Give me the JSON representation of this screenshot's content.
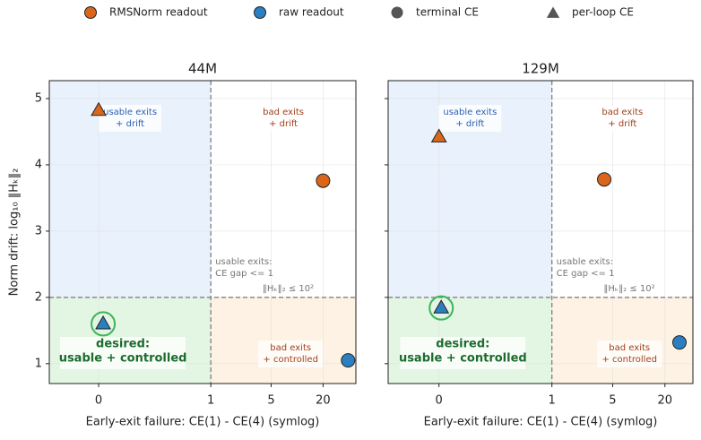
{
  "legend": {
    "series": [
      {
        "name": "RMSNorm readout",
        "color": "#d9661a"
      },
      {
        "name": "raw readout",
        "color": "#2b7fc1"
      }
    ],
    "markers": [
      {
        "name": "terminal CE",
        "shape": "circle"
      },
      {
        "name": "per-loop CE",
        "shape": "triangle"
      }
    ],
    "marker_color": "#555555"
  },
  "chart_data": [
    {
      "type": "scatter",
      "title": "44M",
      "xlabel": "Early-exit failure: CE(1) - CE(4) (symlog)",
      "ylabel": "Norm drift: log₁₀ ‖Hₖ‖₂",
      "xscale": "symlog",
      "xlim": [
        -0.44,
        48
      ],
      "ylim": [
        0.7,
        5.27
      ],
      "xticks": [
        0,
        1,
        5,
        20
      ],
      "yticks": [
        1,
        2,
        3,
        4,
        5
      ],
      "grid": true,
      "thresholds": {
        "x": 1,
        "y": 2
      },
      "series": [
        {
          "x": [
            20,
            0
          ],
          "values": [
            3.76,
            4.82
          ]
        },
        {
          "x": [
            39,
            0.04
          ],
          "values": [
            1.05,
            1.6
          ]
        }
      ],
      "annotations": {
        "upper_left": [
          "usable exits",
          "+ drift"
        ],
        "upper_right": [
          "bad exits",
          "+ drift"
        ],
        "lower_left": [
          "desired:",
          "usable + controlled"
        ],
        "lower_right": [
          "bad exits",
          "+ controlled"
        ],
        "threshold_note": [
          "usable exits:",
          "CE gap <= 1",
          "‖Hₖ‖₂ ≤ 10²"
        ]
      }
    },
    {
      "type": "scatter",
      "title": "129M",
      "xlabel": "Early-exit failure: CE(1) - CE(4) (symlog)",
      "sharey": true,
      "xscale": "symlog",
      "xlim": [
        -0.45,
        42
      ],
      "ylim": [
        0.7,
        5.27
      ],
      "xticks": [
        0,
        1,
        5,
        20
      ],
      "grid": true,
      "thresholds": {
        "x": 1,
        "y": 2
      },
      "series": [
        {
          "x": [
            4,
            0
          ],
          "values": [
            3.78,
            4.42
          ]
        },
        {
          "x": [
            29.4,
            0.02
          ],
          "values": [
            1.32,
            1.84
          ]
        }
      ],
      "annotations": {
        "upper_left": [
          "usable exits",
          "+ drift"
        ],
        "upper_right": [
          "bad exits",
          "+ drift"
        ],
        "lower_left": [
          "desired:",
          "usable + controlled"
        ],
        "lower_right": [
          "bad exits",
          "+ controlled"
        ],
        "threshold_note": [
          "usable exits:",
          "CE gap <= 1",
          "‖Hₖ‖₂ ≤ 10²"
        ]
      }
    }
  ]
}
